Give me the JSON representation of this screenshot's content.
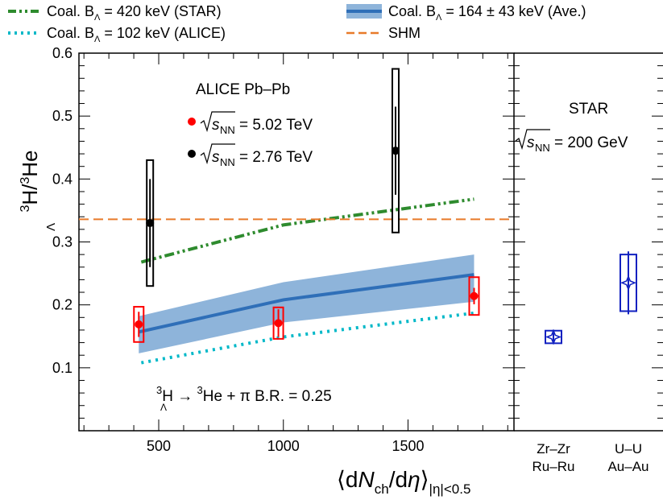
{
  "chart_data": [
    {
      "type": "scatter",
      "panel": "ALICE",
      "title": "ALICE Pb–Pb",
      "ylabel": {
        "main": "H/",
        "sup1": "3",
        "sub1": "Λ",
        "sup2": "3",
        "tail": "He"
      },
      "xlabel": {
        "pre": "⟨d",
        "N": "N",
        "ch": "ch",
        "mid": "/d",
        "eta": "η",
        "post": "⟩",
        "sub": "|η|<0.5"
      },
      "xlim": [
        180,
        1925
      ],
      "ylim": [
        0,
        0.6
      ],
      "xticks": [
        500,
        1000,
        1500
      ],
      "yticks": [
        0.1,
        0.2,
        0.3,
        0.4,
        0.5,
        0.6
      ],
      "ytick_labels": [
        "0.1",
        "0.2",
        "0.3",
        "0.4",
        "0.5",
        "0.6"
      ],
      "xtick_labels": [
        "500",
        "1000",
        "1500"
      ],
      "series": [
        {
          "name": "5.02 TeV",
          "color": "#ff0000",
          "points": [
            {
              "x": 420,
              "y": 0.169,
              "stat": 0.02,
              "syst": 0.028
            },
            {
              "x": 980,
              "y": 0.171,
              "stat": 0.022,
              "syst": 0.025
            },
            {
              "x": 1765,
              "y": 0.214,
              "stat": 0.013,
              "syst": 0.03
            }
          ]
        },
        {
          "name": "2.76 TeV",
          "color": "#000000",
          "points": [
            {
              "x": 465,
              "y": 0.33,
              "stat": 0.07,
              "syst": 0.1
            },
            {
              "x": 1450,
              "y": 0.445,
              "stat": 0.07,
              "syst": 0.13
            }
          ]
        }
      ],
      "models": [
        {
          "name": "Coal. B_Λ = 420 keV (STAR)",
          "color": "#2e8b2e",
          "style": "dash-dot-dot",
          "x": [
            430,
            1000,
            1765
          ],
          "y": [
            0.268,
            0.327,
            0.368
          ]
        },
        {
          "name": "Coal. B_Λ = 102 keV (ALICE)",
          "color": "#00b8c8",
          "style": "dotted",
          "x": [
            430,
            1000,
            1765
          ],
          "y": [
            0.108,
            0.149,
            0.187
          ]
        },
        {
          "name": "Coal. B_Λ = 164 ± 43 keV (Ave.)",
          "color": "#2f6fb8",
          "band_color": "#8eb4da",
          "style": "band",
          "x": [
            420,
            1000,
            1765
          ],
          "y": [
            0.157,
            0.208,
            0.248
          ],
          "ylow": [
            0.123,
            0.172,
            0.205
          ],
          "yhigh": [
            0.182,
            0.236,
            0.28
          ]
        },
        {
          "name": "SHM",
          "color": "#e87a2a",
          "style": "dashed",
          "x": [
            180,
            1925
          ],
          "y": [
            0.336,
            0.336
          ]
        }
      ],
      "annotations": {
        "header": "ALICE Pb–Pb",
        "sqrt_label": "s",
        "sqrt_sub": "NN",
        "energy1": "= 5.02 TeV",
        "energy2": "= 2.76 TeV",
        "decay_pre": "H → ",
        "decay_sup1": "3",
        "decay_sub1": "Λ",
        "decay_sup2": "3",
        "decay_post": "He + π   B.R. = 0.25"
      }
    },
    {
      "type": "scatter",
      "panel": "STAR",
      "title": "STAR",
      "energy": "= 200 GeV",
      "categories": [
        {
          "top": "Zr–Zr",
          "bottom": "Ru–Ru"
        },
        {
          "top": "U–U",
          "bottom": "Au–Au"
        }
      ],
      "ylim": [
        0,
        0.6
      ],
      "series": [
        {
          "name": "STAR",
          "color": "#1020c0",
          "points": [
            {
              "cat": 0,
              "y": 0.149,
              "stat": 0.007,
              "syst": 0.01
            },
            {
              "cat": 1,
              "y": 0.235,
              "stat": 0.05,
              "syst": 0.045
            }
          ]
        }
      ]
    }
  ],
  "legend": {
    "items": [
      {
        "label_pre": "Coal. B",
        "label_sub": "Λ",
        "label_post": " = 420 keV (STAR)",
        "color": "#2e8b2e",
        "style": "dash-dot-dot"
      },
      {
        "label_pre": "Coal. B",
        "label_sub": "Λ",
        "label_post": " = 164 ± 43 keV (Ave.)",
        "color": "#2f6fb8",
        "style": "band"
      },
      {
        "label_pre": "Coal. B",
        "label_sub": "Λ",
        "label_post": " = 102 keV (ALICE)",
        "color": "#00b8c8",
        "style": "dotted"
      },
      {
        "label_pre": "SHM",
        "label_sub": "",
        "label_post": "",
        "color": "#e87a2a",
        "style": "dashed"
      }
    ]
  }
}
